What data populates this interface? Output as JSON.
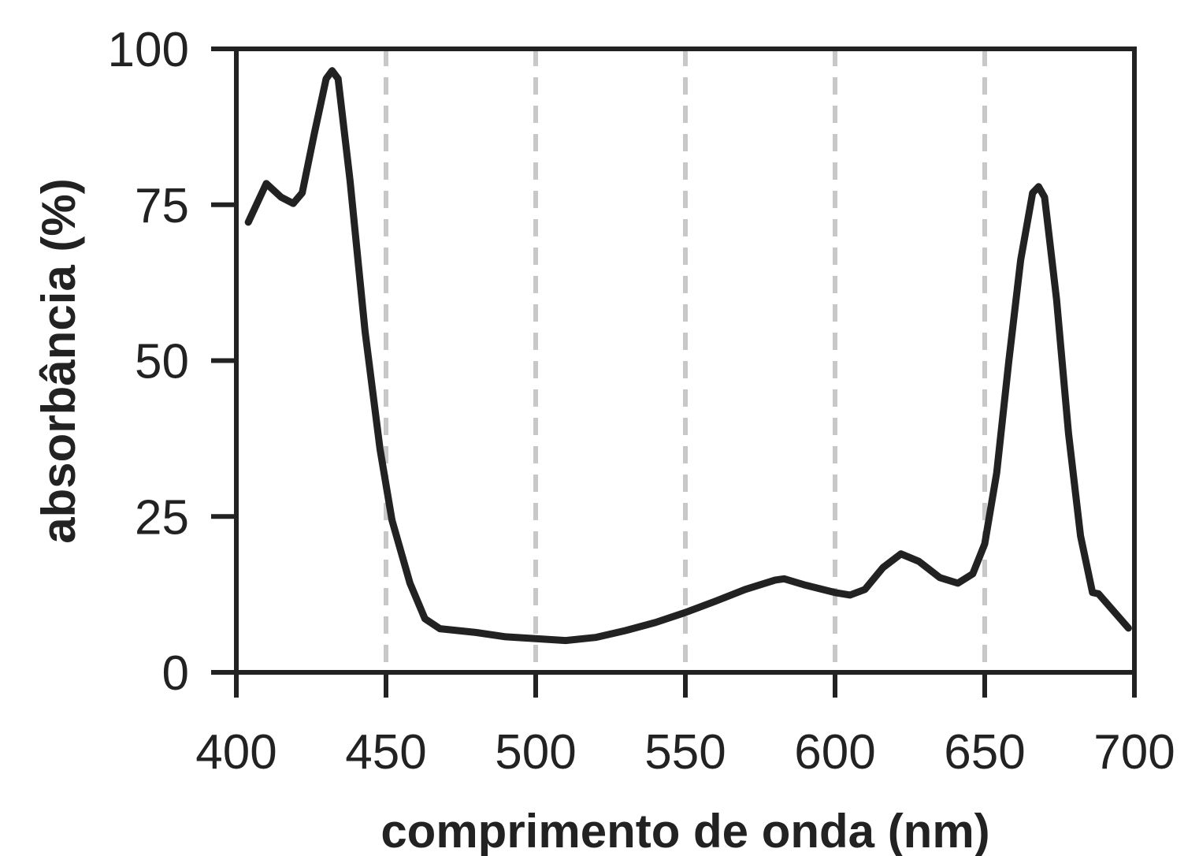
{
  "chart_data": {
    "type": "line",
    "x_label": "comprimento de onda (nm)",
    "y_label": "absorbância (%)",
    "xlim": [
      400,
      700
    ],
    "xticks": [
      400,
      450,
      500,
      550,
      600,
      650,
      700
    ],
    "ylim": [
      0,
      100
    ],
    "yticks": [
      0,
      25,
      50,
      75,
      100
    ],
    "grid": true,
    "series": [
      {
        "color": "#222222",
        "x": [
          404,
          410,
          415,
          419,
          422,
          426,
          430,
          432,
          434,
          438,
          443,
          448,
          452,
          458,
          463,
          468,
          480,
          490,
          500,
          510,
          520,
          530,
          540,
          550,
          560,
          570,
          580,
          583,
          590,
          600,
          605,
          610,
          616,
          622,
          628,
          635,
          641,
          646,
          650,
          654,
          658,
          662,
          666,
          668,
          670,
          674,
          678,
          682,
          686,
          688,
          698
        ],
        "values": [
          72.2,
          78.4,
          76.2,
          75.2,
          76.9,
          86.3,
          95.2,
          96.5,
          95.2,
          78.8,
          54.7,
          35.8,
          24.4,
          14.3,
          8.6,
          7,
          6.4,
          5.7,
          5.4,
          5.1,
          5.6,
          6.7,
          8,
          9.6,
          11.4,
          13.3,
          14.8,
          15,
          14,
          12.8,
          12.4,
          13.3,
          16.8,
          19,
          17.8,
          15.2,
          14.3,
          15.8,
          20.6,
          32,
          49.7,
          66.1,
          76.9,
          77.9,
          76.2,
          59.8,
          38.3,
          21.9,
          12.8,
          12.6,
          7.1
        ]
      }
    ]
  }
}
